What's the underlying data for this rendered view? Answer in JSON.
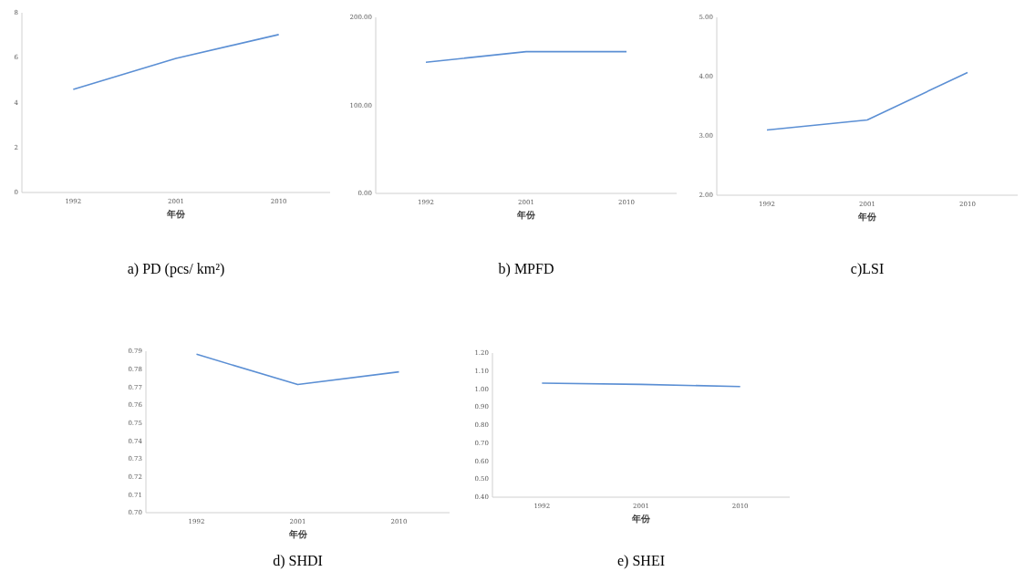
{
  "chart_data": [
    {
      "type": "line",
      "title": "a) PD (pcs/ km²)",
      "xlabel": "年份",
      "categories": [
        "1992",
        "2001",
        "2010"
      ],
      "series": [
        {
          "color": "#5b8fd4",
          "values": [
            4.59,
            5.97,
            7.03
          ]
        }
      ],
      "ylim": [
        0,
        8
      ],
      "yticks": [
        0,
        2,
        4,
        6,
        8
      ]
    },
    {
      "type": "line",
      "title": "b) MPFD",
      "xlabel": "年份",
      "categories": [
        "1992",
        "2001",
        "2010"
      ],
      "series": [
        {
          "color": "#5b8fd4",
          "values": [
            149,
            161,
            161
          ]
        }
      ],
      "ylim": [
        0,
        200
      ],
      "yticks": [
        {
          "value": 0,
          "label": "0.00"
        },
        {
          "value": 100,
          "label": "100.00"
        },
        {
          "value": 200,
          "label": "200.00"
        }
      ]
    },
    {
      "type": "line",
      "title": "c)LSI",
      "xlabel": "年份",
      "categories": [
        "1992",
        "2001",
        "2010"
      ],
      "series": [
        {
          "color": "#5b8fd4",
          "values": [
            3.1,
            3.27,
            4.07
          ]
        }
      ],
      "ylim": [
        2,
        5
      ],
      "yticks": [
        {
          "value": 2,
          "label": "2.00"
        },
        {
          "value": 3,
          "label": "3.00"
        },
        {
          "value": 4,
          "label": "4.00"
        },
        {
          "value": 5,
          "label": "5.00"
        }
      ]
    },
    {
      "type": "line",
      "title": "d) SHDI",
      "xlabel": "年份",
      "categories": [
        "1992",
        "2001",
        "2010"
      ],
      "series": [
        {
          "color": "#5b8fd4",
          "values": [
            0.7883,
            0.7714,
            0.7785
          ]
        }
      ],
      "ylim": [
        0.7,
        0.79
      ],
      "yticks": [
        {
          "value": 0.7,
          "label": "0.70"
        },
        0.71,
        0.72,
        0.73,
        0.74,
        0.75,
        0.76,
        0.77,
        0.78,
        0.79
      ]
    },
    {
      "type": "line",
      "title": "e) SHEI",
      "xlabel": "年份",
      "categories": [
        "1992",
        "2001",
        "2010"
      ],
      "series": [
        {
          "color": "#5b8fd4",
          "values": [
            1.033,
            1.026,
            1.014
          ]
        }
      ],
      "ylim": [
        0.4,
        1.2
      ],
      "yticks": [
        {
          "value": 0.4,
          "label": "0.40"
        },
        {
          "value": 0.5,
          "label": "0.50"
        },
        {
          "value": 0.6,
          "label": "0.60"
        },
        {
          "value": 0.7,
          "label": "0.70"
        },
        {
          "value": 0.8,
          "label": "0.80"
        },
        {
          "value": 0.9,
          "label": "0.90"
        },
        {
          "value": 1,
          "label": "1.00"
        },
        {
          "value": 1.1,
          "label": "1.10"
        },
        {
          "value": 1.2,
          "label": "1.20"
        }
      ]
    }
  ]
}
